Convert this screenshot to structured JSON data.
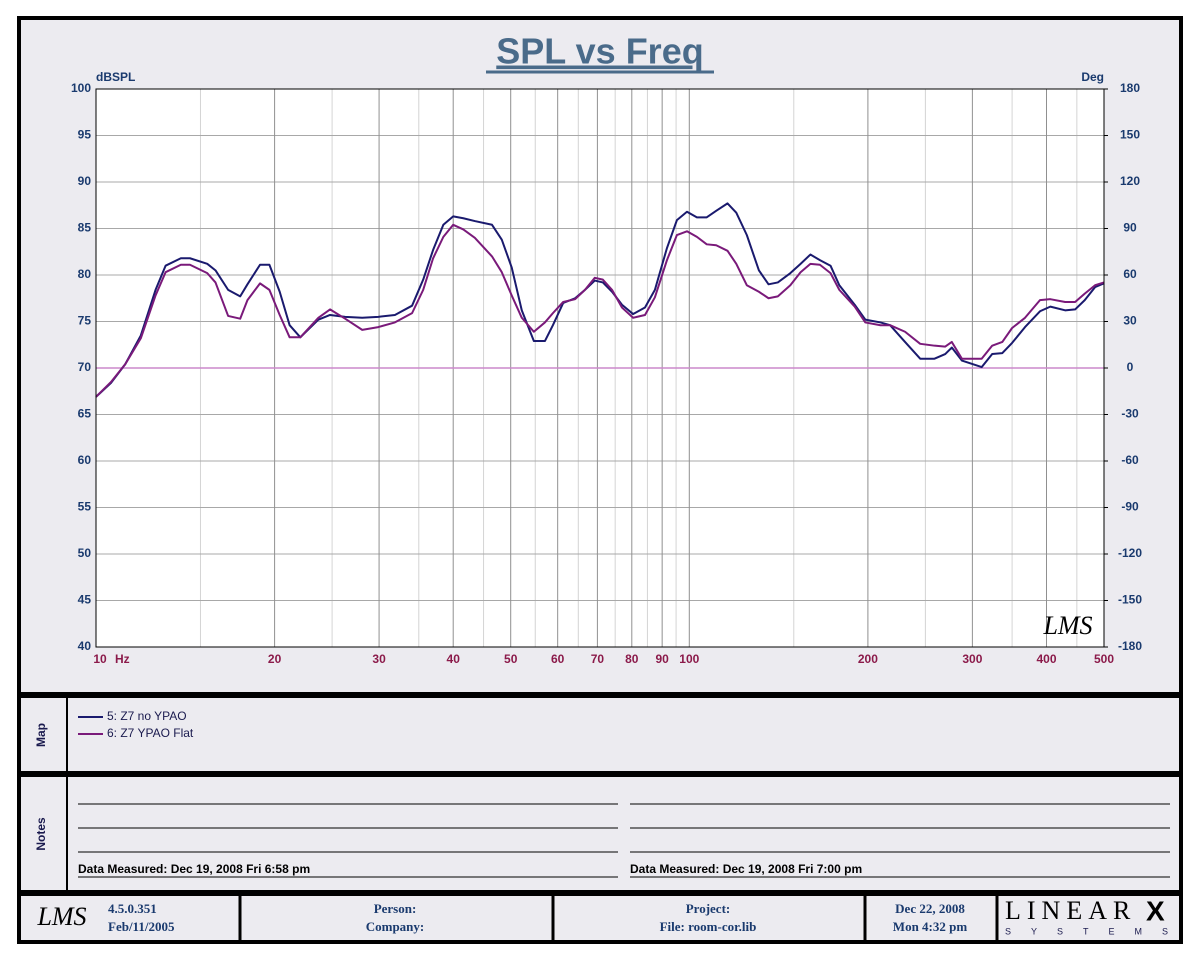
{
  "chart_data": {
    "type": "line",
    "title": "SPL vs Freq",
    "y_label": "dBSPL",
    "y2_label": "Deg",
    "x_unit": "Hz",
    "logo": "LMS",
    "xscale": "log",
    "xlim": [
      10,
      500
    ],
    "xticks": [
      10,
      20,
      30,
      40,
      50,
      60,
      70,
      80,
      90,
      100,
      200,
      300,
      400,
      500
    ],
    "ylim": [
      40,
      100
    ],
    "yticks": [
      40,
      45,
      50,
      55,
      60,
      65,
      70,
      75,
      80,
      85,
      90,
      95,
      100
    ],
    "y2lim": [
      -180,
      180
    ],
    "y2ticks": [
      -180,
      -150,
      -120,
      -90,
      -60,
      -30,
      0,
      30,
      60,
      90,
      120,
      150,
      180
    ],
    "grid": true,
    "reference_line": {
      "axis": "y2",
      "value": 0,
      "color": "#cc88cc"
    },
    "x": [
      10,
      10.6,
      11.2,
      11.9,
      12.6,
      13.1,
      13.9,
      14.4,
      15.4,
      15.9,
      16.7,
      17.5,
      18.0,
      18.9,
      19.6,
      20.4,
      21.2,
      22.1,
      23.7,
      24.8,
      26.3,
      28.1,
      29.9,
      31.9,
      34.1,
      35.6,
      37.0,
      38.5,
      40.0,
      41.6,
      43.5,
      46.5,
      48.3,
      50.2,
      52.2,
      54.7,
      57.1,
      58.9,
      61.3,
      64.2,
      66.7,
      69.3,
      71.5,
      74.1,
      77.0,
      80.4,
      84.2,
      87.5,
      91.7,
      95.3,
      99.1,
      103,
      107,
      111,
      116,
      120,
      125,
      131,
      136,
      141,
      148,
      154,
      160,
      166,
      173,
      179,
      190,
      198,
      210,
      218,
      231,
      245,
      259,
      270,
      277,
      288,
      311,
      324,
      337,
      350,
      368,
      390,
      406,
      430,
      447,
      464,
      483,
      500
    ],
    "series": [
      {
        "name": "5: Z7 no YPAO",
        "color": "#1a1a6e",
        "values": [
          66.9,
          68.4,
          70.4,
          73.5,
          78.4,
          81.0,
          81.8,
          81.8,
          81.2,
          80.5,
          78.4,
          77.7,
          79.0,
          81.1,
          81.1,
          78.2,
          74.6,
          73.3,
          75.2,
          75.7,
          75.5,
          75.4,
          75.5,
          75.7,
          76.7,
          79.5,
          82.7,
          85.4,
          86.3,
          86.1,
          85.8,
          85.4,
          83.8,
          80.8,
          76.2,
          72.9,
          72.9,
          74.6,
          77.0,
          77.5,
          78.4,
          79.4,
          79.2,
          78.2,
          76.8,
          75.8,
          76.5,
          78.4,
          82.9,
          85.9,
          86.8,
          86.2,
          86.2,
          86.9,
          87.7,
          86.7,
          84.3,
          80.5,
          79.0,
          79.2,
          80.2,
          81.2,
          82.2,
          81.6,
          81.0,
          78.9,
          76.8,
          75.2,
          74.9,
          74.6,
          72.8,
          71.0,
          71.0,
          71.5,
          72.2,
          70.8,
          70.1,
          71.5,
          71.6,
          72.7,
          74.4,
          76.1,
          76.6,
          76.2,
          76.3,
          77.3,
          78.7,
          79.1
        ]
      },
      {
        "name": "6: Z7 YPAO Flat",
        "color": "#7a1a7a",
        "values": [
          66.9,
          68.5,
          70.4,
          73.2,
          77.8,
          80.3,
          81.1,
          81.1,
          80.2,
          79.2,
          75.6,
          75.3,
          77.3,
          79.1,
          78.4,
          75.7,
          73.3,
          73.3,
          75.4,
          76.3,
          75.3,
          74.1,
          74.4,
          74.9,
          75.9,
          78.4,
          81.8,
          84.1,
          85.4,
          84.9,
          84.0,
          82.0,
          80.3,
          77.8,
          75.4,
          73.9,
          74.9,
          75.9,
          77.1,
          77.4,
          78.4,
          79.7,
          79.5,
          78.4,
          76.5,
          75.4,
          75.7,
          77.6,
          81.6,
          84.3,
          84.7,
          84.1,
          83.3,
          83.2,
          82.6,
          81.2,
          78.9,
          78.2,
          77.5,
          77.7,
          78.9,
          80.3,
          81.2,
          81.1,
          80.2,
          78.4,
          76.6,
          74.9,
          74.6,
          74.6,
          73.9,
          72.6,
          72.4,
          72.3,
          72.8,
          71.0,
          71.0,
          72.4,
          72.8,
          74.3,
          75.4,
          77.3,
          77.4,
          77.1,
          77.1,
          78.0,
          78.9,
          79.2
        ]
      }
    ]
  },
  "map": {
    "label": "Map"
  },
  "notes": {
    "label": "Notes",
    "left": "Data Measured: Dec 19, 2008  Fri  6:58 pm",
    "right": "Data Measured: Dec 19, 2008  Fri  7:00 pm"
  },
  "footer": {
    "logo": "LMS",
    "version": "4.5.0.351",
    "version_date": "Feb/11/2005",
    "person": "Person:",
    "company": "Company:",
    "project": "Project:",
    "file": "File: room-cor.lib",
    "date": "Dec 22, 2008",
    "time": "Mon  4:32 pm",
    "brand": "LINEAR",
    "brand_mark": "X",
    "brand_sub": "SYSTEMS"
  }
}
